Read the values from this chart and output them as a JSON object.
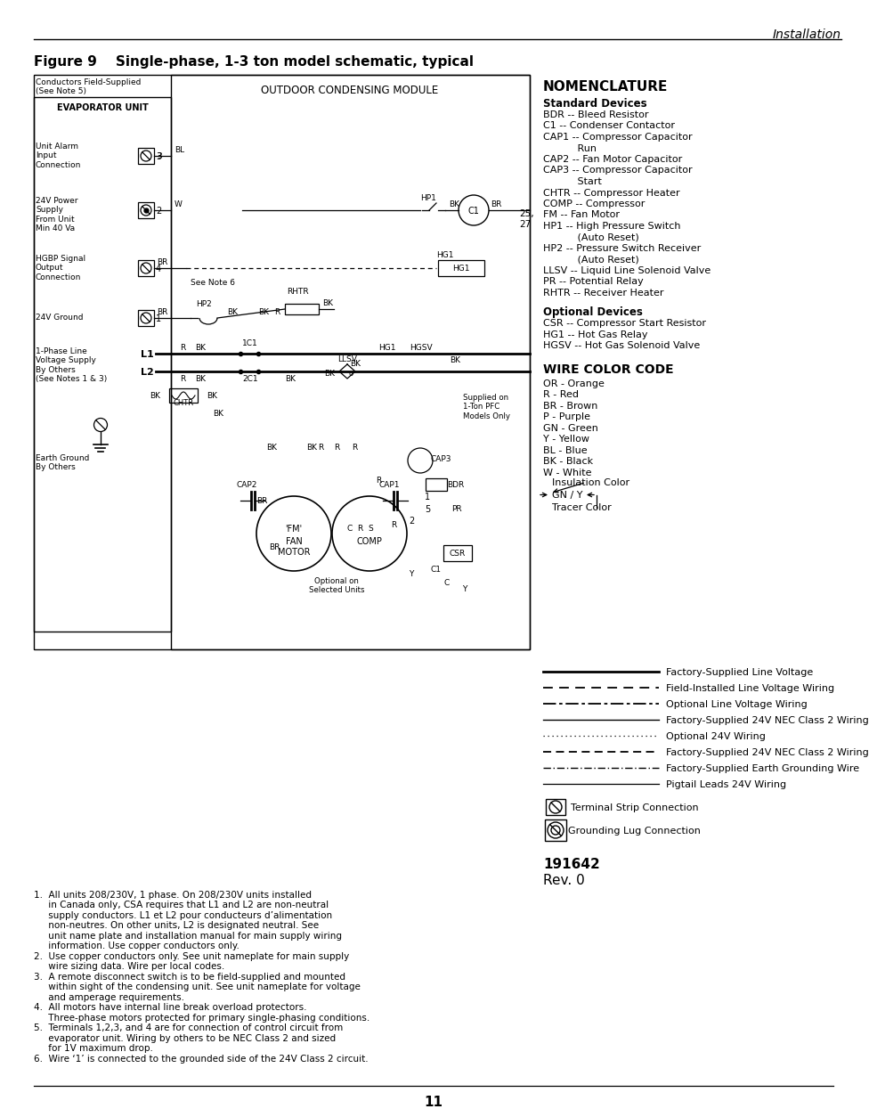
{
  "page_header_right": "Installation",
  "figure_title": "Figure 9    Single-phase, 1-3 ton model schematic, typical",
  "page_number": "11",
  "background_color": "#ffffff",
  "nomenclature_title": "NOMENCLATURE",
  "standard_devices_title": "Standard Devices",
  "standard_devices": [
    "BDR -- Bleed Resistor",
    "C1 -- Condenser Contactor",
    "CAP1 -- Compressor Capacitor",
    "           Run",
    "CAP2 -- Fan Motor Capacitor",
    "CAP3 -- Compressor Capacitor",
    "           Start",
    "CHTR -- Compressor Heater",
    "COMP -- Compressor",
    "FM -- Fan Motor",
    "HP1 -- High Pressure Switch",
    "           (Auto Reset)",
    "HP2 -- Pressure Switch Receiver",
    "           (Auto Reset)",
    "LLSV -- Liquid Line Solenoid Valve",
    "PR -- Potential Relay",
    "RHTR -- Receiver Heater"
  ],
  "optional_devices_title": "Optional Devices",
  "optional_devices": [
    "CSR -- Compressor Start Resistor",
    "HG1 -- Hot Gas Relay",
    "HGSV -- Hot Gas Solenoid Valve"
  ],
  "wire_color_title": "WIRE COLOR CODE",
  "wire_colors": [
    "OR - Orange",
    "R - Red",
    "BR - Brown",
    "P - Purple",
    "GN - Green",
    "Y - Yellow",
    "BL - Blue",
    "BK - Black",
    "W - White"
  ],
  "insulation_label": "Insulation Color",
  "gn_y_label": "GN / Y",
  "tracer_label": "Tracer Color",
  "legend_labels": [
    "Factory-Supplied Line Voltage",
    "Field-Installed Line Voltage Wiring",
    "Optional Line Voltage Wiring",
    "Factory-Supplied 24V NEC Class 2 Wiring",
    "Optional 24V Wiring",
    "Factory-Supplied 24V NEC Class 2 Wiring",
    "Factory-Supplied Earth Grounding Wire",
    "Pigtail Leads 24V Wiring"
  ],
  "terminal_strip_label": "Terminal Strip Connection",
  "grounding_lug_label": "Grounding Lug Connection",
  "part_number": "191642",
  "rev": "Rev. 0",
  "notes": [
    "1.  All units 208/230V, 1 phase. On 208/230V units installed",
    "     in Canada only, CSA requires that L1 and L2 are non-neutral",
    "     supply conductors. L1 et L2 pour conducteurs d’alimentation",
    "     non-neutres. On other units, L2 is designated neutral. See",
    "     unit name plate and installation manual for main supply wiring",
    "     information. Use copper conductors only.",
    "2.  Use copper conductors only. See unit nameplate for main supply",
    "     wire sizing data. Wire per local codes.",
    "3.  A remote disconnect switch is to be field-supplied and mounted",
    "     within sight of the condensing unit. See unit nameplate for voltage",
    "     and amperage requirements.",
    "4.  All motors have internal line break overload protectors.",
    "     Three-phase motors protected for primary single-phasing conditions.",
    "5.  Terminals 1,2,3, and 4 are for connection of control circuit from",
    "     evaporator unit. Wiring by others to be NEC Class 2 and sized",
    "     for 1V maximum drop.",
    "6.  Wire ‘1’ is connected to the grounded side of the 24V Class 2 circuit."
  ]
}
